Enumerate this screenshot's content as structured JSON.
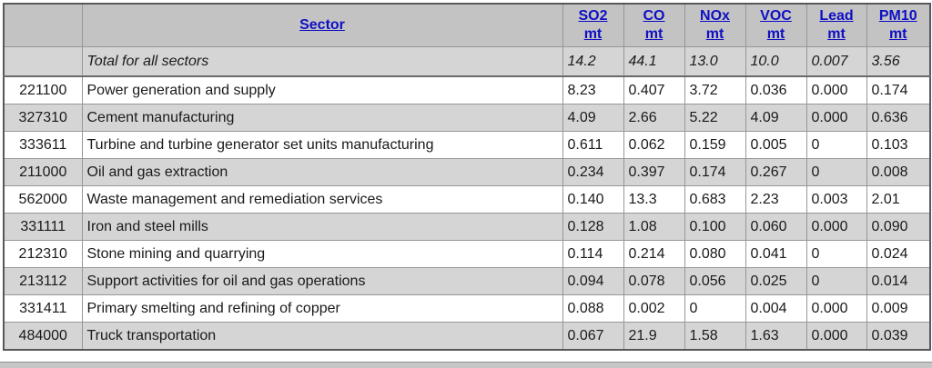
{
  "table": {
    "sector_header": "Sector",
    "metric_headers": [
      {
        "name": "SO2",
        "unit": "mt"
      },
      {
        "name": "CO",
        "unit": "mt"
      },
      {
        "name": "NOx",
        "unit": "mt"
      },
      {
        "name": "VOC",
        "unit": "mt"
      },
      {
        "name": "Lead",
        "unit": "mt"
      },
      {
        "name": "PM10",
        "unit": "mt"
      }
    ],
    "total_row": {
      "label": "Total for all sectors",
      "values": [
        "14.2",
        "44.1",
        "13.0",
        "10.0",
        "0.007",
        "3.56"
      ]
    },
    "rows": [
      {
        "code": "221100",
        "sector": "Power generation and supply",
        "values": [
          "8.23",
          "0.407",
          "3.72",
          "0.036",
          "0.000",
          "0.174"
        ]
      },
      {
        "code": "327310",
        "sector": "Cement manufacturing",
        "values": [
          "4.09",
          "2.66",
          "5.22",
          "4.09",
          "0.000",
          "0.636"
        ]
      },
      {
        "code": "333611",
        "sector": "Turbine and turbine generator set units manufacturing",
        "values": [
          "0.611",
          "0.062",
          "0.159",
          "0.005",
          "0",
          "0.103"
        ]
      },
      {
        "code": "211000",
        "sector": "Oil and gas extraction",
        "values": [
          "0.234",
          "0.397",
          "0.174",
          "0.267",
          "0",
          "0.008"
        ]
      },
      {
        "code": "562000",
        "sector": "Waste management and remediation services",
        "values": [
          "0.140",
          "13.3",
          "0.683",
          "2.23",
          "0.003",
          "2.01"
        ]
      },
      {
        "code": "331111",
        "sector": "Iron and steel mills",
        "values": [
          "0.128",
          "1.08",
          "0.100",
          "0.060",
          "0.000",
          "0.090"
        ]
      },
      {
        "code": "212310",
        "sector": "Stone mining and quarrying",
        "values": [
          "0.114",
          "0.214",
          "0.080",
          "0.041",
          "0",
          "0.024"
        ]
      },
      {
        "code": "213112",
        "sector": "Support activities for oil and gas operations",
        "values": [
          "0.094",
          "0.078",
          "0.056",
          "0.025",
          "0",
          "0.014"
        ]
      },
      {
        "code": "331411",
        "sector": "Primary smelting and refining of copper",
        "values": [
          "0.088",
          "0.002",
          "0",
          "0.004",
          "0.000",
          "0.009"
        ]
      },
      {
        "code": "484000",
        "sector": "Truck transportation",
        "values": [
          "0.067",
          "21.9",
          "1.58",
          "1.63",
          "0.000",
          "0.039"
        ]
      }
    ]
  },
  "colors": {
    "header_link_blue": "#0f0fc4",
    "header_bg": "#c3c3c3",
    "shaded_row_bg": "#d5d5d5",
    "cell_border": "#979797",
    "outer_border": "#58585a"
  }
}
